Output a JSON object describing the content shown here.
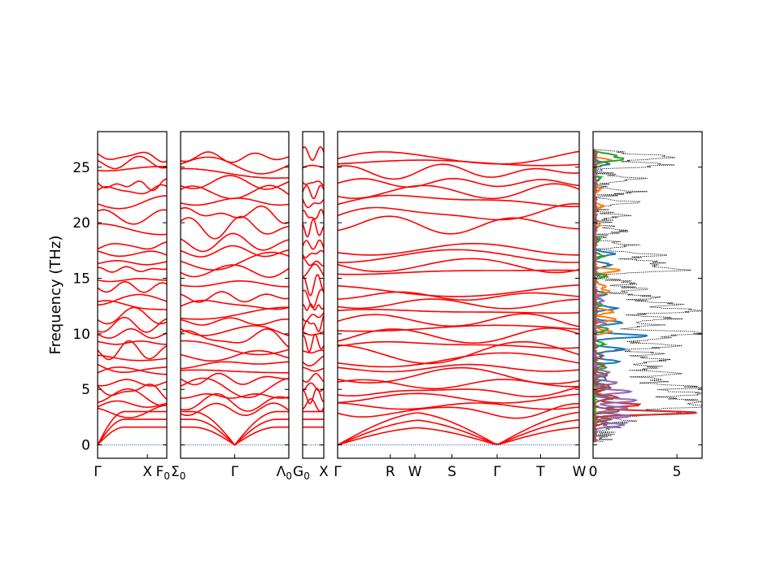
{
  "chart_data": {
    "type": "line",
    "title": "",
    "ylabel": "Frequency (THz)",
    "ylim": [
      -1.2,
      28.2
    ],
    "yticks": [
      0,
      5,
      10,
      15,
      20,
      25
    ],
    "zero_line_color": "#1f3fbf",
    "band_color": "#ff0000",
    "panels": [
      {
        "name": "band-panel-gamma-x-f0",
        "xticks": [
          {
            "label": "Γ",
            "sub": "",
            "pos": 0.0
          },
          {
            "label": "X",
            "sub": "",
            "pos": 0.72
          },
          {
            "label": "F",
            "sub": "0",
            "pos": 1.0
          }
        ],
        "bands_approx_thz": [
          0.0,
          1.8,
          2.6,
          3.0,
          3.6,
          4.3,
          4.9,
          5.6,
          6.4,
          7.0,
          7.8,
          8.5,
          9.2,
          10.0,
          10.8,
          11.6,
          12.4,
          13.1,
          14.2,
          14.9,
          15.8,
          16.4,
          17.2,
          17.9,
          19.4,
          20.5,
          21.8,
          22.9,
          23.4,
          24.9,
          25.4,
          26.0
        ]
      },
      {
        "name": "band-panel-sigma0-gamma-lambda0",
        "xticks": [
          {
            "label": "Σ",
            "sub": "0",
            "pos": 0.0
          },
          {
            "label": "Γ",
            "sub": "",
            "pos": 0.5
          },
          {
            "label": "Λ",
            "sub": "0",
            "pos": 1.0
          }
        ],
        "bands_approx_thz": [
          0.0,
          1.6,
          2.4,
          3.2,
          3.8,
          4.4,
          5.2,
          5.9,
          6.6,
          7.3,
          8.0,
          8.8,
          9.6,
          10.3,
          11.1,
          11.8,
          12.6,
          13.3,
          14.5,
          15.7,
          16.5,
          17.4,
          18.2,
          19.6,
          20.8,
          21.9,
          22.7,
          23.6,
          24.4,
          25.2,
          25.9
        ]
      },
      {
        "name": "band-panel-g0-x",
        "xticks": [
          {
            "label": "G",
            "sub": "0",
            "pos": 0.0
          },
          {
            "label": "X",
            "sub": "",
            "pos": 1.0
          }
        ],
        "bands_approx_thz": [
          0.0,
          2.0,
          3.0,
          3.6,
          4.4,
          5.2,
          6.0,
          6.8,
          7.6,
          8.4,
          9.2,
          10.0,
          10.8,
          11.6,
          12.4,
          13.2,
          14.4,
          15.6,
          16.4,
          17.2,
          18.0,
          19.5,
          20.6,
          21.8,
          22.8,
          23.6,
          25.0,
          26.2
        ]
      },
      {
        "name": "band-panel-gamma-r-w-s-gamma-t-w",
        "xticks": [
          {
            "label": "Γ",
            "sub": "",
            "pos": 0.0
          },
          {
            "label": "R",
            "sub": "",
            "pos": 0.218
          },
          {
            "label": "W",
            "sub": "",
            "pos": 0.32
          },
          {
            "label": "S",
            "sub": "",
            "pos": 0.473
          },
          {
            "label": "Γ",
            "sub": "",
            "pos": 0.66
          },
          {
            "label": "T",
            "sub": "",
            "pos": 0.84
          },
          {
            "label": "W",
            "sub": "",
            "pos": 1.0
          }
        ],
        "bands_approx_thz": [
          0.0,
          1.6,
          2.4,
          3.0,
          3.5,
          4.2,
          4.8,
          5.5,
          6.2,
          6.9,
          7.6,
          8.3,
          9.0,
          9.8,
          10.5,
          11.2,
          12.0,
          12.7,
          13.4,
          13.9,
          15.6,
          16.2,
          17.0,
          17.6,
          19.8,
          20.8,
          22.0,
          22.8,
          23.6,
          24.6,
          25.4,
          25.8
        ]
      }
    ],
    "dos": {
      "name": "dos-panel",
      "xlim": [
        0,
        6.5
      ],
      "xticks": [
        0,
        5
      ],
      "total": {
        "style": "dotted",
        "color": "#000000",
        "peaks": [
          [
            0.8,
            0.4
          ],
          [
            1.5,
            0.9
          ],
          [
            2.2,
            1.8
          ],
          [
            2.9,
            5.0
          ],
          [
            3.5,
            6.0
          ],
          [
            4.0,
            5.4
          ],
          [
            4.6,
            6.4
          ],
          [
            5.2,
            5.8
          ],
          [
            5.8,
            3.6
          ],
          [
            6.4,
            4.2
          ],
          [
            7.0,
            3.5
          ],
          [
            7.6,
            3.8
          ],
          [
            8.2,
            3.2
          ],
          [
            8.9,
            4.6
          ],
          [
            9.6,
            4.0
          ],
          [
            10.1,
            6.2
          ],
          [
            10.8,
            3.5
          ],
          [
            11.4,
            4.4
          ],
          [
            12.1,
            6.3
          ],
          [
            12.7,
            4.6
          ],
          [
            13.3,
            3.2
          ],
          [
            14.0,
            2.6
          ],
          [
            14.6,
            1.9
          ],
          [
            15.8,
            5.2
          ],
          [
            16.4,
            4.0
          ],
          [
            17.1,
            3.5
          ],
          [
            18.0,
            1.8
          ],
          [
            19.3,
            1.4
          ],
          [
            20.6,
            1.6
          ],
          [
            21.8,
            1.9
          ],
          [
            22.8,
            2.2
          ],
          [
            24.0,
            2.4
          ],
          [
            25.2,
            3.8
          ],
          [
            25.9,
            4.4
          ],
          [
            26.3,
            1.0
          ]
        ]
      },
      "projected": [
        {
          "color": "#1f77b4",
          "peaks": [
            [
              6.0,
              0.8
            ],
            [
              7.5,
              1.4
            ],
            [
              8.6,
              1.8
            ],
            [
              9.8,
              3.2
            ],
            [
              11.0,
              1.6
            ],
            [
              12.3,
              1.3
            ],
            [
              13.6,
              0.8
            ],
            [
              16.2,
              1.0
            ],
            [
              17.2,
              1.2
            ],
            [
              25.3,
              0.9
            ]
          ]
        },
        {
          "color": "#ff7f0e",
          "peaks": [
            [
              10.2,
              1.0
            ],
            [
              11.3,
              1.4
            ],
            [
              12.0,
              1.2
            ],
            [
              13.8,
              0.9
            ],
            [
              14.3,
              0.7
            ],
            [
              15.7,
              1.6
            ],
            [
              19.8,
              0.4
            ],
            [
              21.5,
              0.5
            ],
            [
              23.0,
              0.4
            ],
            [
              25.6,
              1.0
            ]
          ]
        },
        {
          "color": "#2ca02c",
          "peaks": [
            [
              5.0,
              0.6
            ],
            [
              7.0,
              0.7
            ],
            [
              9.1,
              0.6
            ],
            [
              10.4,
              0.8
            ],
            [
              12.6,
              0.5
            ],
            [
              15.2,
              0.7
            ],
            [
              17.0,
              0.6
            ],
            [
              18.5,
              0.4
            ],
            [
              24.0,
              0.4
            ],
            [
              25.7,
              1.8
            ],
            [
              26.1,
              1.2
            ]
          ]
        },
        {
          "color": "#d62728",
          "peaks": [
            [
              2.0,
              0.7
            ],
            [
              2.9,
              6.2
            ],
            [
              3.6,
              2.8
            ],
            [
              4.3,
              1.4
            ],
            [
              5.1,
              1.0
            ]
          ]
        },
        {
          "color": "#9467bd",
          "peaks": [
            [
              1.8,
              1.8
            ],
            [
              2.6,
              2.2
            ],
            [
              3.3,
              2.0
            ],
            [
              4.0,
              2.6
            ],
            [
              4.8,
              2.2
            ],
            [
              5.6,
              1.4
            ],
            [
              6.5,
              0.9
            ],
            [
              10.9,
              0.6
            ],
            [
              13.0,
              0.6
            ]
          ]
        },
        {
          "color": "#8c564b",
          "peaks": [
            [
              2.3,
              0.9
            ],
            [
              3.1,
              1.6
            ],
            [
              4.2,
              1.1
            ],
            [
              5.3,
              1.0
            ],
            [
              6.3,
              0.8
            ],
            [
              7.2,
              0.7
            ],
            [
              8.0,
              0.5
            ]
          ]
        }
      ]
    }
  }
}
